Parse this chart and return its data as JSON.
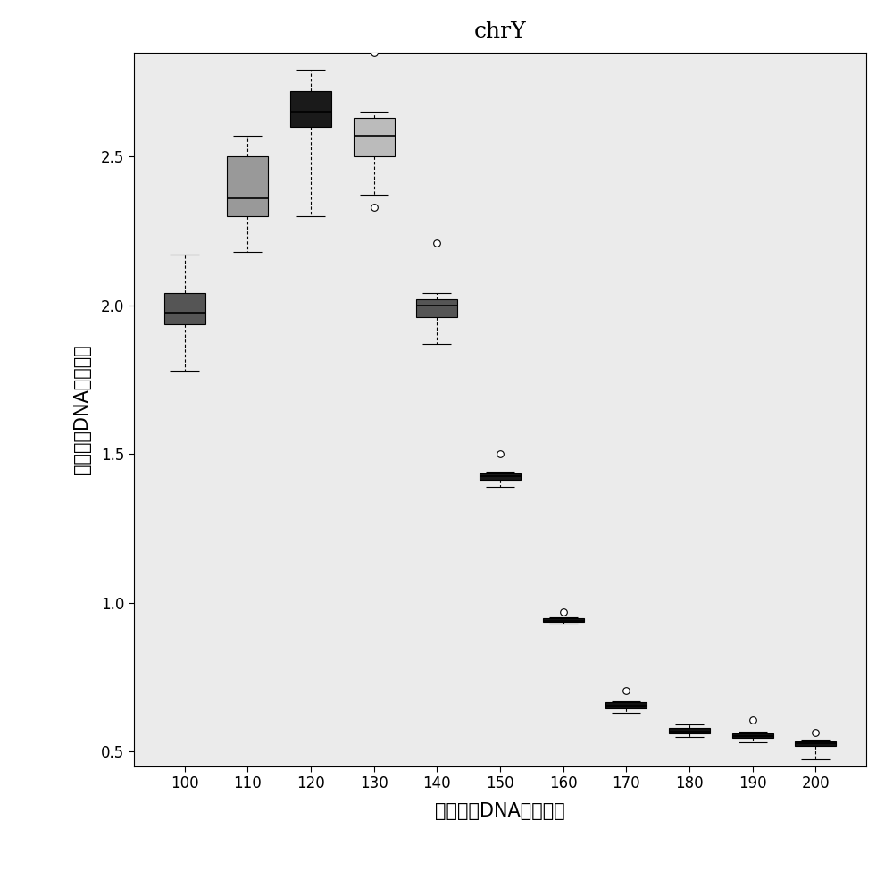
{
  "title": "chrY",
  "xlabel": "胎儿游离DNA读长区间",
  "ylabel": "胎儿游离DNA提高倍数",
  "x_positions": [
    100,
    110,
    120,
    130,
    140,
    150,
    160,
    170,
    180,
    190,
    200
  ],
  "x_labels": [
    "100",
    "110",
    "120",
    "130",
    "140",
    "150",
    "160",
    "170",
    "180",
    "190",
    "200"
  ],
  "ylim": [
    0.45,
    2.85
  ],
  "yticks": [
    0.5,
    1.0,
    1.5,
    2.0,
    2.5
  ],
  "boxes": [
    {
      "x": 100,
      "whislo": 1.78,
      "q1": 1.935,
      "med": 1.975,
      "q3": 2.04,
      "whishi": 2.17,
      "fliers": [],
      "color": "#555555"
    },
    {
      "x": 110,
      "whislo": 2.18,
      "q1": 2.3,
      "med": 2.36,
      "q3": 2.5,
      "whishi": 2.57,
      "fliers": [],
      "color": "#999999"
    },
    {
      "x": 120,
      "whislo": 2.3,
      "q1": 2.6,
      "med": 2.65,
      "q3": 2.72,
      "whishi": 2.79,
      "fliers": [],
      "color": "#1a1a1a"
    },
    {
      "x": 130,
      "whislo": 2.37,
      "q1": 2.5,
      "med": 2.57,
      "q3": 2.63,
      "whishi": 2.65,
      "fliers": [
        2.85,
        2.33
      ],
      "color": "#bbbbbb"
    },
    {
      "x": 140,
      "whislo": 1.87,
      "q1": 1.96,
      "med": 2.0,
      "q3": 2.02,
      "whishi": 2.04,
      "fliers": [
        2.21
      ],
      "color": "#555555"
    },
    {
      "x": 150,
      "whislo": 1.39,
      "q1": 1.415,
      "med": 1.425,
      "q3": 1.435,
      "whishi": 1.44,
      "fliers": [
        1.5
      ],
      "color": "#1a1a1a"
    },
    {
      "x": 160,
      "whislo": 0.93,
      "q1": 0.935,
      "med": 0.94,
      "q3": 0.948,
      "whishi": 0.952,
      "fliers": [
        0.97
      ],
      "color": "#111111"
    },
    {
      "x": 170,
      "whislo": 0.63,
      "q1": 0.645,
      "med": 0.655,
      "q3": 0.665,
      "whishi": 0.67,
      "fliers": [
        0.705
      ],
      "color": "#111111"
    },
    {
      "x": 180,
      "whislo": 0.55,
      "q1": 0.56,
      "med": 0.568,
      "q3": 0.578,
      "whishi": 0.59,
      "fliers": [],
      "color": "#111111"
    },
    {
      "x": 190,
      "whislo": 0.53,
      "q1": 0.545,
      "med": 0.553,
      "q3": 0.56,
      "whishi": 0.568,
      "fliers": [
        0.605
      ],
      "color": "#111111"
    },
    {
      "x": 200,
      "whislo": 0.475,
      "q1": 0.518,
      "med": 0.528,
      "q3": 0.535,
      "whishi": 0.54,
      "fliers": [
        0.565
      ],
      "color": "#111111"
    }
  ],
  "box_width": 6.5,
  "background_color": "#ebebeb",
  "title_fontsize": 18,
  "label_fontsize": 15,
  "tick_fontsize": 12
}
